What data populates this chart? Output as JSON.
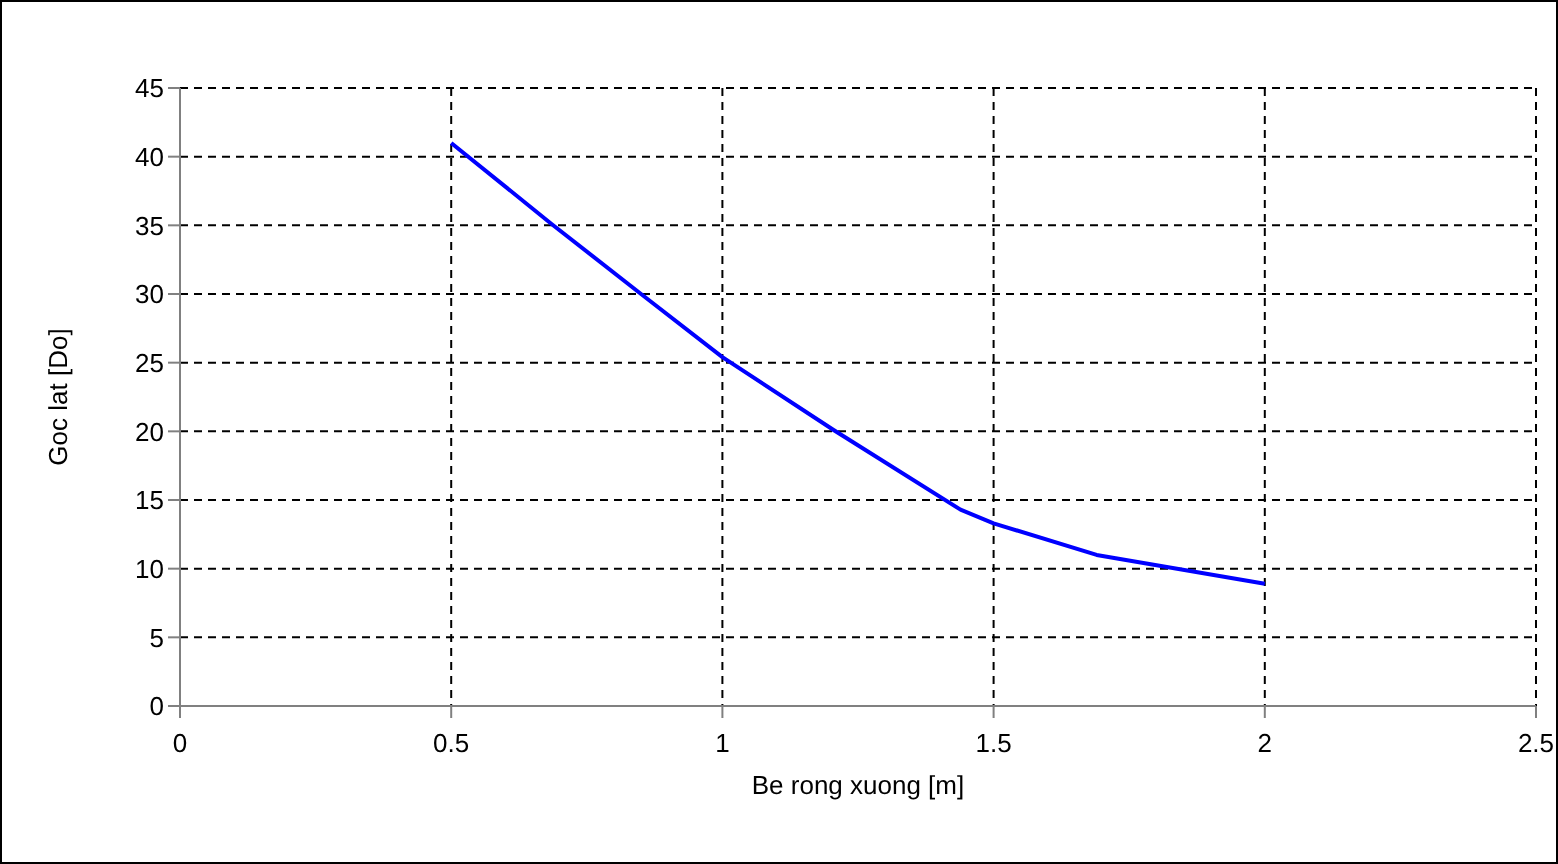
{
  "chart_data": {
    "type": "line",
    "xlabel": "Be rong xuong [m]",
    "ylabel": "Goc lat [Do]",
    "x": [
      0.5,
      0.685,
      0.85,
      1,
      1.205,
      1.439,
      1.5,
      1.69,
      2
    ],
    "series": [
      {
        "color": "#0000ff",
        "values": [
          41,
          35.1,
          30,
          25.4,
          20.1,
          14.3,
          13.3,
          11,
          8.9
        ]
      }
    ],
    "xlim": [
      0,
      2.5
    ],
    "xticks": [
      0,
      0.5,
      1,
      1.5,
      2,
      2.5
    ],
    "ylim": [
      0,
      45
    ],
    "yticks": [
      0,
      5,
      10,
      15,
      20,
      25,
      30,
      35,
      40,
      45
    ],
    "grid": true,
    "marker": "none",
    "line_style": "solid",
    "legend": false
  }
}
